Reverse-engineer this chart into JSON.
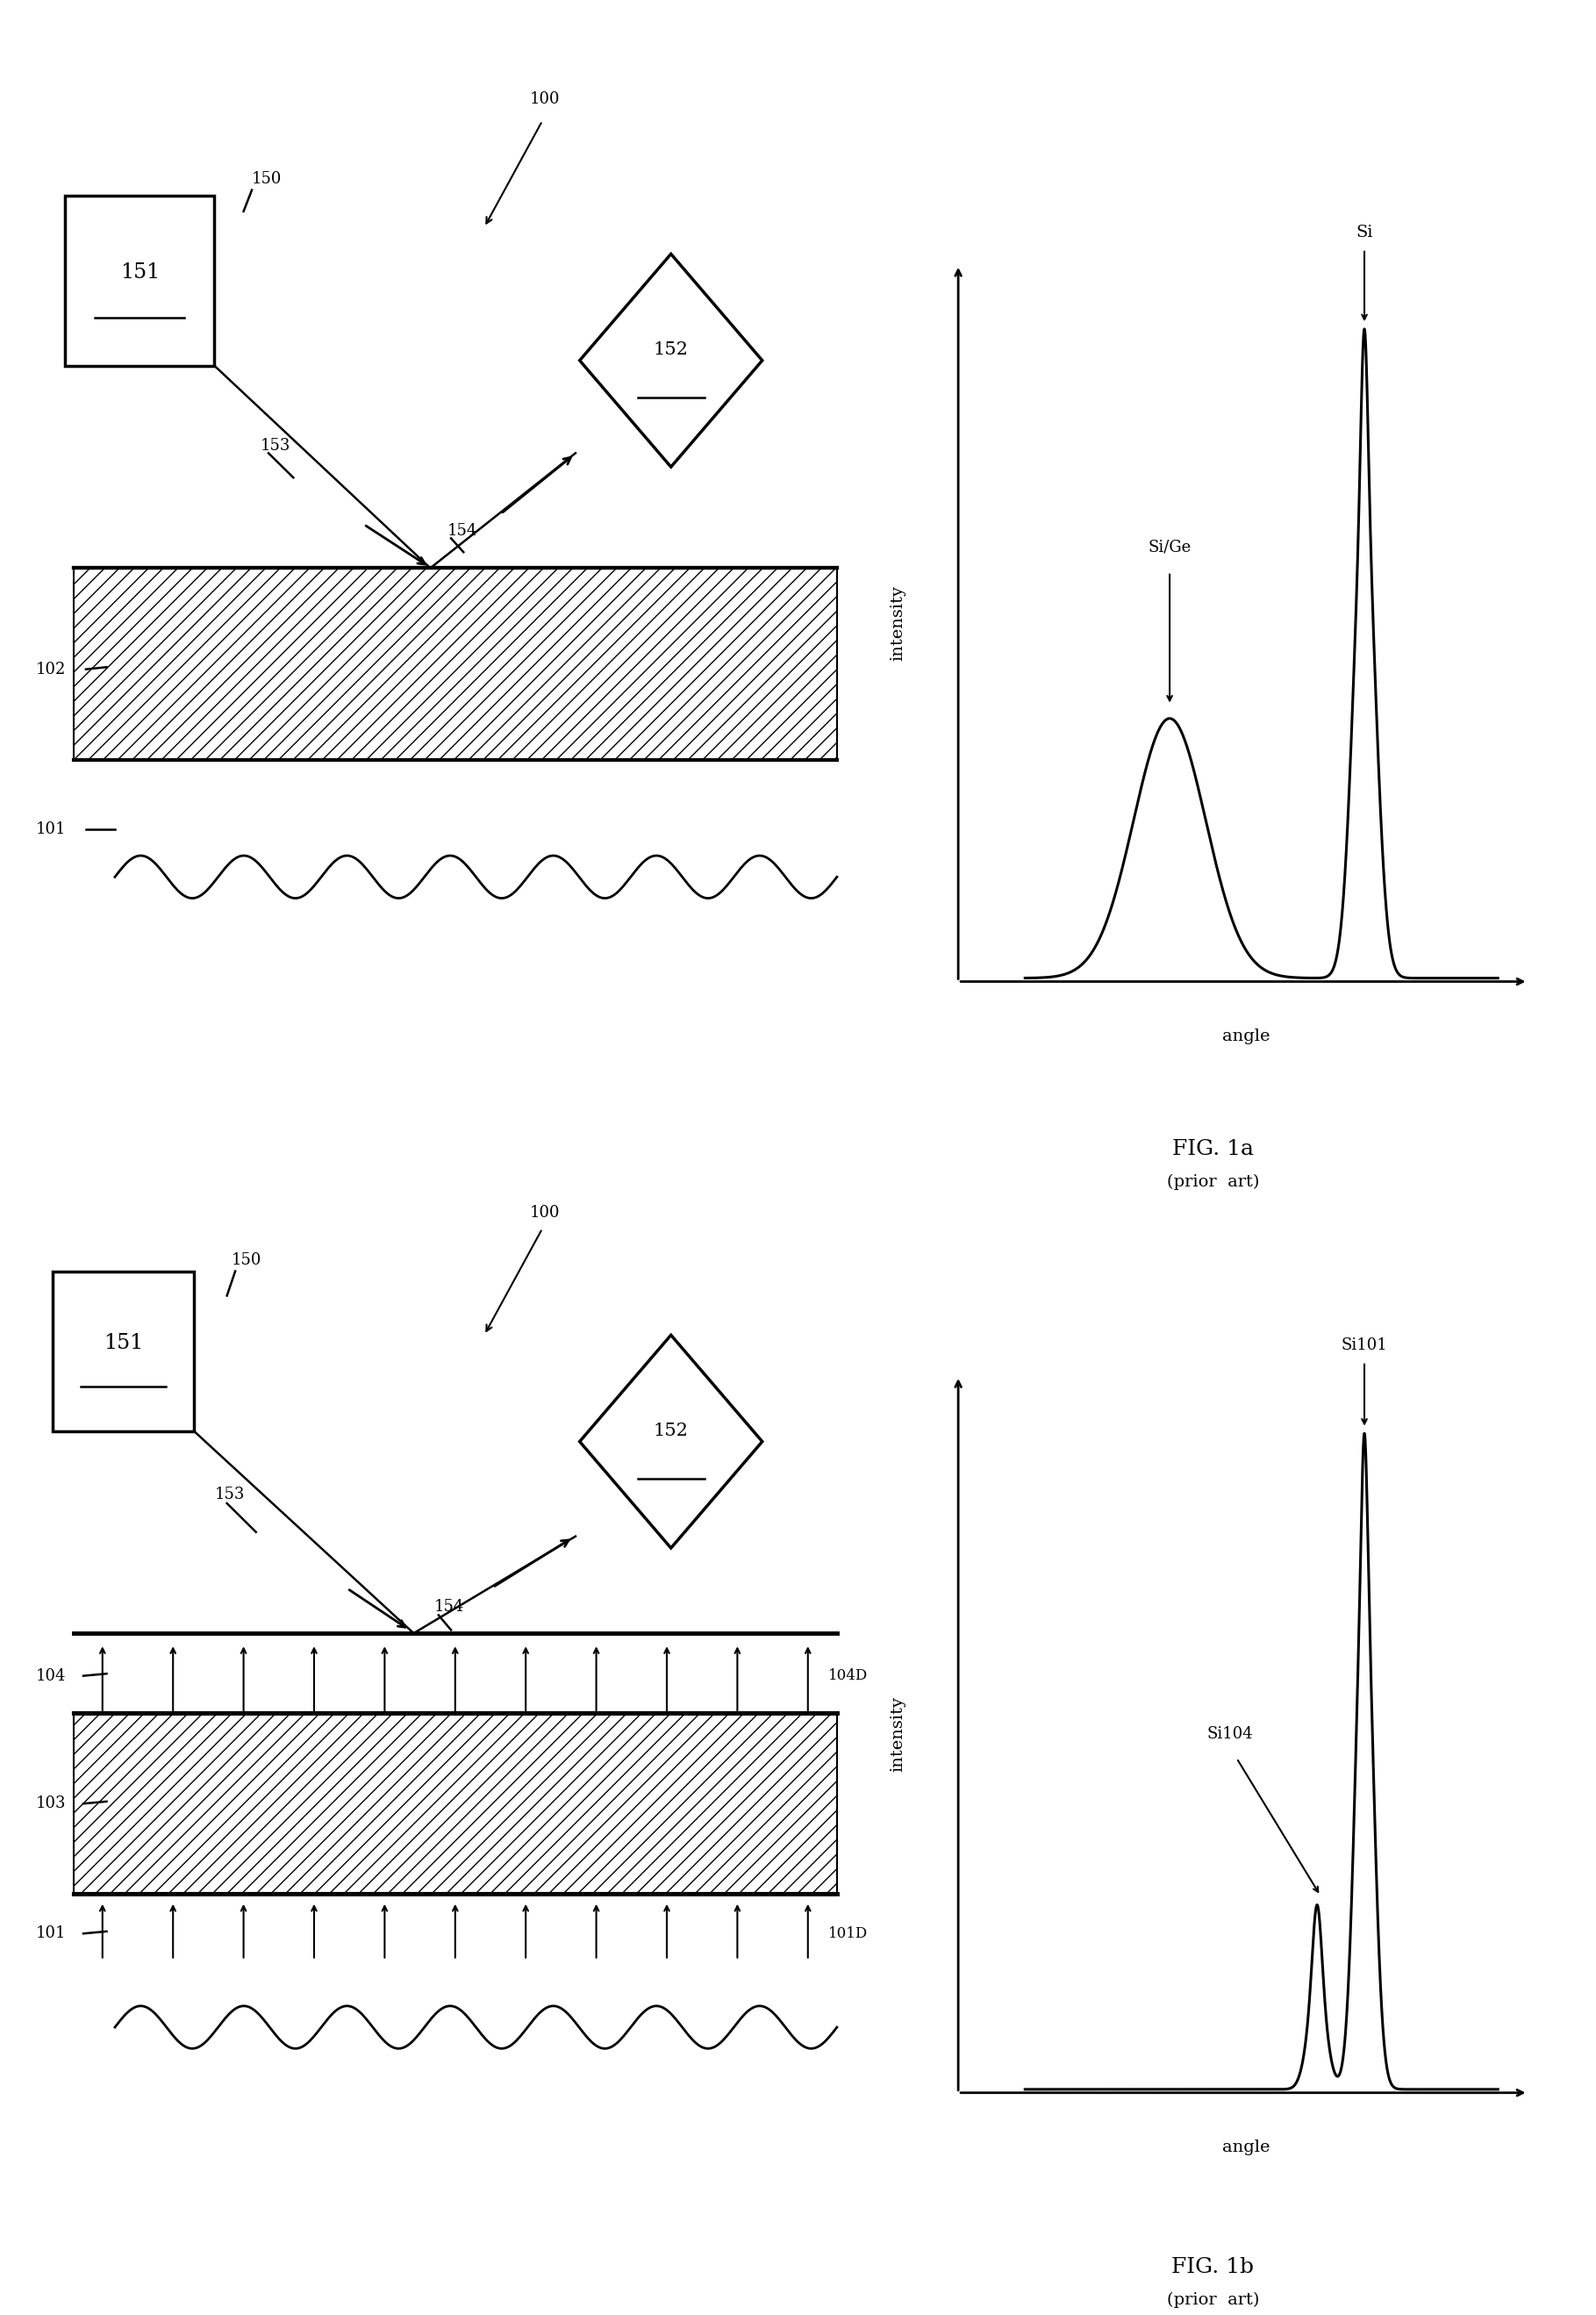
{
  "fig_width": 18.19,
  "fig_height": 26.38,
  "background_color": "#ffffff",
  "fig1a": {
    "title": "FIG. 1a",
    "subtitle": "(prior  art)"
  },
  "fig1b": {
    "title": "FIG. 1b",
    "subtitle": "(prior  art)"
  }
}
